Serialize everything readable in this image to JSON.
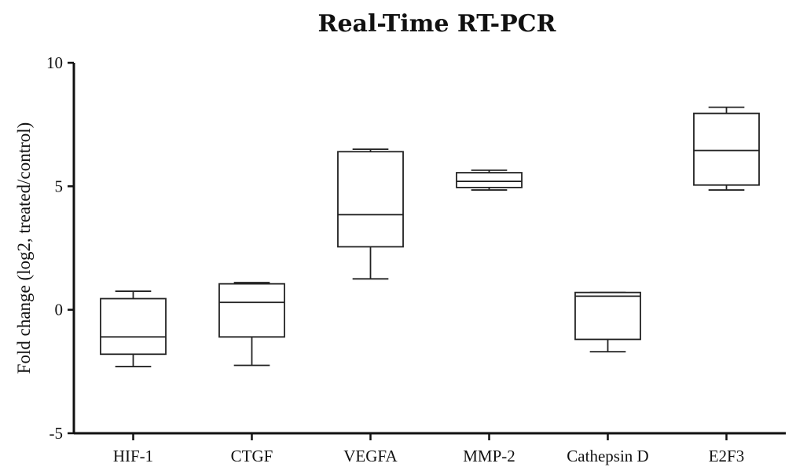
{
  "chart_data": {
    "type": "boxplot",
    "title": "Real-Time RT-PCR",
    "xlabel": "",
    "ylabel": "Fold change (log2, treated/control)",
    "ylim": [
      -5,
      10
    ],
    "yticks": [
      "10",
      "5",
      "0",
      "-5"
    ],
    "grid": false,
    "legend": "none",
    "categories": [
      "HIF-1",
      "CTGF",
      "VEGFA",
      "MMP-2",
      "Cathepsin D",
      "E2F3"
    ],
    "boxes": [
      {
        "min": -2.3,
        "q1": -1.8,
        "median": -1.1,
        "q3": 0.45,
        "max": 0.75
      },
      {
        "min": -2.25,
        "q1": -1.1,
        "median": 0.3,
        "q3": 1.05,
        "max": 1.1
      },
      {
        "min": 1.25,
        "q1": 2.55,
        "median": 3.85,
        "q3": 6.4,
        "max": 6.5
      },
      {
        "min": 4.85,
        "q1": 4.95,
        "median": 5.2,
        "q3": 5.55,
        "max": 5.65
      },
      {
        "min": -1.7,
        "q1": -1.2,
        "median": 0.55,
        "q3": 0.7,
        "max": 0.7
      },
      {
        "min": 4.85,
        "q1": 5.05,
        "median": 6.45,
        "q3": 7.95,
        "max": 8.2
      }
    ]
  }
}
